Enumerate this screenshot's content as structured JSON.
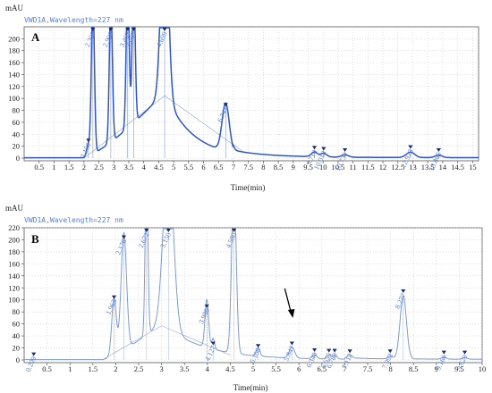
{
  "chart_data": [
    {
      "type": "line",
      "panel_label": "A",
      "signal_label": "VWD1A,Wavelength=227 nm",
      "y_unit": "mAU",
      "xlabel": "Time(min)",
      "xlim": [
        0,
        15.2
      ],
      "ylim": [
        0,
        220
      ],
      "x_ticks": [
        0.5,
        1,
        1.5,
        2,
        2.5,
        3,
        3.5,
        4,
        4.5,
        5,
        5.5,
        6,
        6.5,
        7,
        7.5,
        8,
        8.5,
        9,
        9.5,
        10,
        10.5,
        11,
        11.5,
        12,
        12.5,
        13,
        13.5,
        14,
        14.5,
        15
      ],
      "y_ticks": [
        0,
        20,
        40,
        60,
        80,
        100,
        120,
        140,
        160,
        180,
        200
      ],
      "line_color": "#2f55c8",
      "peaks": [
        {
          "rt": 2.15,
          "label": "2.150",
          "height": 20,
          "width": 0.06
        },
        {
          "rt": 2.3,
          "label": "2.300",
          "height": 260,
          "width": 0.05
        },
        {
          "rt": 2.9,
          "label": "2.900",
          "height": 240,
          "width": 0.05
        },
        {
          "rt": 3.463,
          "label": "3.463",
          "height": 240,
          "width": 0.05
        },
        {
          "rt": 3.663,
          "label": "3.663",
          "height": 240,
          "width": 0.05
        },
        {
          "rt": 4.699,
          "label": "4.699",
          "height": 320,
          "width": 0.12
        },
        {
          "rt": 6.741,
          "label": "6.741",
          "height": 80,
          "width": 0.12
        },
        {
          "rt": 9.71,
          "label": "9.710",
          "height": 8,
          "width": 0.1
        },
        {
          "rt": 10.018,
          "label": "10.018",
          "height": 6,
          "width": 0.1
        },
        {
          "rt": 10.73,
          "label": "10.730",
          "height": 4,
          "width": 0.12
        },
        {
          "rt": 12.923,
          "label": "12.923",
          "height": 9,
          "width": 0.14
        },
        {
          "rt": 13.865,
          "label": "13.865",
          "height": 4,
          "width": 0.12
        }
      ]
    },
    {
      "type": "line",
      "panel_label": "B",
      "signal_label": "VWD1A,Wavelength=227 nm",
      "y_unit": "mAU",
      "xlabel": "Time(min)",
      "xlim": [
        0,
        10
      ],
      "ylim": [
        0,
        220
      ],
      "x_ticks": [
        0.5,
        1,
        1.5,
        2,
        2.5,
        3,
        3.5,
        4,
        4.5,
        5,
        5.5,
        6,
        6.5,
        7,
        7.5,
        8,
        8.5,
        9,
        9.5,
        10
      ],
      "y_ticks": [
        0,
        20,
        40,
        60,
        80,
        100,
        120,
        140,
        160,
        180,
        200,
        220
      ],
      "line_color": "#7f98d6",
      "arrow_rt": 5.847,
      "peaks": [
        {
          "rt": 0.209,
          "label": "0.209",
          "height": 0,
          "width": 0.05
        },
        {
          "rt": 1.963,
          "label": "1.963",
          "height": 95,
          "width": 0.05
        },
        {
          "rt": 2.176,
          "label": "2.176",
          "height": 195,
          "width": 0.06
        },
        {
          "rt": 2.672,
          "label": "2.672",
          "height": 280,
          "width": 0.03
        },
        {
          "rt": 3.15,
          "label": "3.150",
          "height": 280,
          "width": 0.11
        },
        {
          "rt": 3.988,
          "label": "3.988",
          "height": 80,
          "width": 0.04
        },
        {
          "rt": 4.127,
          "label": "4.127",
          "height": 18,
          "width": 0.03
        },
        {
          "rt": 4.58,
          "label": "4.580",
          "height": 280,
          "width": 0.05
        },
        {
          "rt": 5.108,
          "label": "5.108",
          "height": 14,
          "width": 0.04
        },
        {
          "rt": 5.847,
          "label": "5.847",
          "height": 18,
          "width": 0.06
        },
        {
          "rt": 6.34,
          "label": "6.340",
          "height": 7,
          "width": 0.05
        },
        {
          "rt": 6.655,
          "label": "6.655",
          "height": 6,
          "width": 0.05
        },
        {
          "rt": 6.78,
          "label": "6.780",
          "height": 6,
          "width": 0.05
        },
        {
          "rt": 7.112,
          "label": "7.112",
          "height": 5,
          "width": 0.05
        },
        {
          "rt": 7.992,
          "label": "7.992",
          "height": 5,
          "width": 0.05
        },
        {
          "rt": 8.277,
          "label": "8.277",
          "height": 105,
          "width": 0.07
        },
        {
          "rt": 9.166,
          "label": "9.166",
          "height": 3,
          "width": 0.05
        },
        {
          "rt": 9.62,
          "label": "9.620",
          "height": 3,
          "width": 0.05
        }
      ]
    }
  ]
}
